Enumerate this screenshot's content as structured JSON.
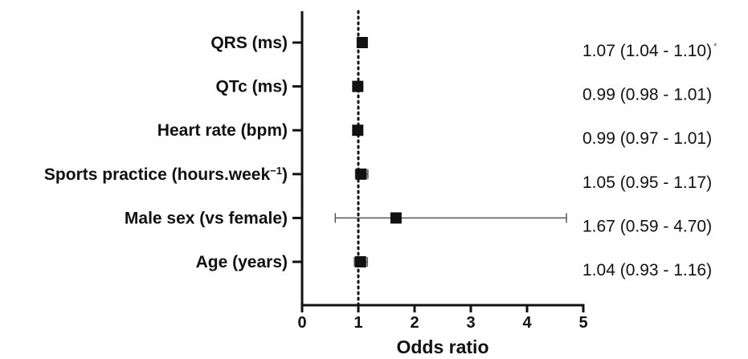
{
  "chart_data": {
    "type": "forest",
    "xlabel": "Odds ratio",
    "xlim": [
      0,
      5
    ],
    "xticks": [
      "0",
      "1",
      "2",
      "3",
      "4",
      "5"
    ],
    "reference_line": 1,
    "grid": false,
    "rows": [
      {
        "label": "QRS (ms)",
        "or": 1.07,
        "lo": 1.04,
        "hi": 1.1,
        "text": "1.07 (1.04 - 1.10)",
        "mark": "*"
      },
      {
        "label": "QTc (ms)",
        "or": 0.99,
        "lo": 0.98,
        "hi": 1.01,
        "text": "0.99 (0.98 - 1.01)",
        "mark": ""
      },
      {
        "label": "Heart rate (bpm)",
        "or": 0.99,
        "lo": 0.97,
        "hi": 1.01,
        "text": "0.99 (0.97 - 1.01)",
        "mark": ""
      },
      {
        "label": "Sports practice (hours.week",
        "label_sup": "−1",
        "label_tail": ")",
        "or": 1.05,
        "lo": 0.95,
        "hi": 1.17,
        "text": "1.05 (0.95 - 1.17)",
        "mark": ""
      },
      {
        "label": "Male sex (vs female)",
        "or": 1.67,
        "lo": 0.59,
        "hi": 4.7,
        "text": "1.67 (0.59 - 4.70)",
        "mark": ""
      },
      {
        "label": "Age (years)",
        "or": 1.04,
        "lo": 0.93,
        "hi": 1.16,
        "text": "1.04 (0.93 - 1.16)",
        "mark": ""
      }
    ],
    "colors": {
      "marker": "#111111",
      "whisker": "#555555",
      "axis": "#111111"
    }
  }
}
